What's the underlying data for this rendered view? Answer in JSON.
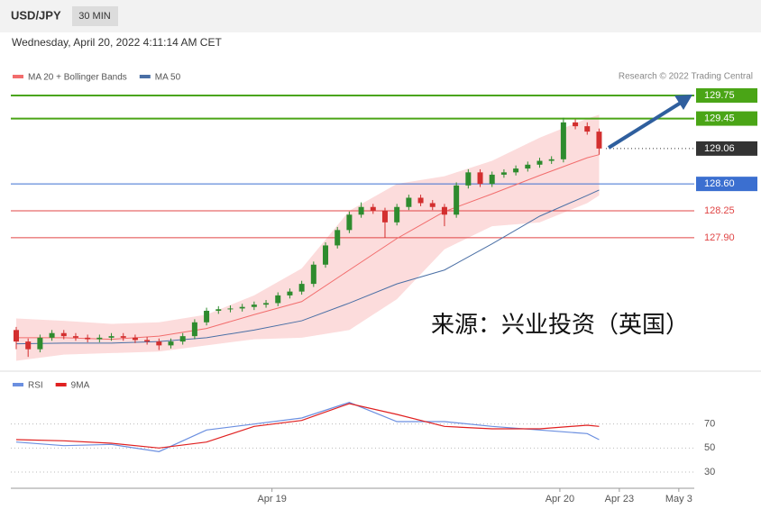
{
  "header": {
    "symbol": "USD/JPY",
    "interval": "30 MIN",
    "date": "Wednesday, April 20, 2022 4:11:14 AM CET"
  },
  "chart_data": [
    {
      "type": "candlestick",
      "credit": "Research © 2022 Trading Central",
      "annotation": "来源：兴业投资（英国）",
      "xlim": [
        0,
        114
      ],
      "ylim": [
        126.2,
        129.82
      ],
      "candles": {
        "up_color": "#2e8b2e",
        "down_color": "#d32f2f",
        "x": [
          0,
          2,
          4,
          6,
          8,
          10,
          12,
          14,
          16,
          18,
          20,
          22,
          24,
          26,
          28,
          30,
          32,
          34,
          36,
          38,
          40,
          42,
          44,
          46,
          48,
          50,
          52,
          54,
          56,
          58,
          60,
          62,
          64,
          66,
          68,
          70,
          72,
          74,
          76,
          78,
          80,
          82,
          84,
          86,
          88,
          90,
          92,
          94,
          96,
          98
        ],
        "open": [
          126.7,
          126.55,
          126.45,
          126.6,
          126.66,
          126.62,
          126.6,
          126.58,
          126.6,
          126.62,
          126.6,
          126.57,
          126.55,
          126.5,
          126.55,
          126.62,
          126.8,
          126.95,
          126.97,
          126.98,
          127.0,
          127.03,
          127.05,
          127.15,
          127.2,
          127.3,
          127.55,
          127.8,
          128.0,
          128.2,
          128.3,
          128.25,
          128.1,
          128.3,
          128.42,
          128.35,
          128.3,
          128.2,
          128.58,
          128.75,
          128.6,
          128.72,
          128.75,
          128.8,
          128.85,
          128.9,
          128.92,
          129.4,
          129.35,
          129.28
        ],
        "high": [
          126.74,
          126.59,
          126.64,
          126.7,
          126.7,
          126.66,
          126.64,
          126.64,
          126.66,
          126.66,
          126.64,
          126.61,
          126.59,
          126.59,
          126.66,
          126.84,
          126.99,
          127.01,
          127.02,
          127.04,
          127.07,
          127.09,
          127.19,
          127.24,
          127.34,
          127.59,
          127.84,
          128.04,
          128.24,
          128.36,
          128.34,
          128.29,
          128.34,
          128.46,
          128.46,
          128.39,
          128.34,
          128.62,
          128.79,
          128.79,
          128.76,
          128.79,
          128.84,
          128.89,
          128.94,
          128.96,
          129.46,
          129.44,
          129.4,
          129.32
        ],
        "low": [
          126.45,
          126.35,
          126.41,
          126.56,
          126.58,
          126.56,
          126.54,
          126.54,
          126.56,
          126.56,
          126.53,
          126.51,
          126.44,
          126.46,
          126.51,
          126.58,
          126.76,
          126.91,
          126.93,
          126.94,
          126.96,
          126.99,
          127.01,
          127.11,
          127.16,
          127.26,
          127.51,
          127.76,
          127.96,
          128.16,
          128.21,
          127.9,
          128.06,
          128.26,
          128.31,
          128.26,
          128.05,
          128.16,
          128.54,
          128.56,
          128.56,
          128.68,
          128.71,
          128.76,
          128.81,
          128.86,
          128.88,
          129.31,
          129.24,
          128.98
        ],
        "close": [
          126.55,
          126.45,
          126.6,
          126.66,
          126.62,
          126.6,
          126.58,
          126.6,
          126.62,
          126.6,
          126.57,
          126.55,
          126.5,
          126.55,
          126.62,
          126.8,
          126.95,
          126.97,
          126.98,
          127.0,
          127.03,
          127.05,
          127.15,
          127.2,
          127.3,
          127.55,
          127.8,
          128.0,
          128.2,
          128.3,
          128.25,
          128.1,
          128.3,
          128.42,
          128.35,
          128.3,
          128.2,
          128.58,
          128.75,
          128.6,
          128.72,
          128.75,
          128.8,
          128.85,
          128.9,
          128.92,
          129.4,
          129.35,
          129.28,
          129.06
        ]
      },
      "series": [
        {
          "name": "MA 20 + Bollinger Bands",
          "color": "#f26d6d",
          "band_color": "#fcdcdc",
          "x": [
            0,
            8,
            16,
            24,
            32,
            40,
            48,
            56,
            64,
            72,
            80,
            88,
            96,
            98
          ],
          "values": [
            126.6,
            126.6,
            126.58,
            126.62,
            126.72,
            126.9,
            127.07,
            127.48,
            127.89,
            128.24,
            128.47,
            128.71,
            128.94,
            128.98
          ],
          "upper": [
            126.85,
            126.82,
            126.78,
            126.8,
            126.9,
            127.15,
            127.5,
            128.25,
            128.6,
            128.7,
            128.9,
            129.2,
            129.45,
            129.5
          ],
          "lower": [
            126.3,
            126.38,
            126.4,
            126.42,
            126.5,
            126.58,
            126.6,
            126.7,
            127.1,
            127.75,
            128.05,
            128.1,
            128.35,
            128.45
          ]
        },
        {
          "name": "MA 50",
          "color": "#4a6fa5",
          "x": [
            0,
            8,
            16,
            24,
            32,
            40,
            48,
            56,
            64,
            72,
            80,
            88,
            96,
            98
          ],
          "values": [
            126.52,
            126.53,
            126.53,
            126.55,
            126.6,
            126.7,
            126.82,
            127.05,
            127.3,
            127.48,
            127.82,
            128.18,
            128.45,
            128.52
          ]
        }
      ],
      "levels": [
        {
          "value": 129.75,
          "label": "129.75",
          "color": "#4aa516",
          "line": true,
          "box": true
        },
        {
          "value": 129.45,
          "label": "129.45",
          "color": "#4aa516",
          "line": true,
          "box": true
        },
        {
          "value": 129.06,
          "label": "129.06",
          "color": "#333333",
          "line": false,
          "box": true
        },
        {
          "value": 128.6,
          "label": "128.60",
          "color": "#3b6fd0",
          "line": true,
          "box": true
        },
        {
          "value": 128.25,
          "label": "128.25",
          "color": "#e04545",
          "line": true,
          "box": false
        },
        {
          "value": 127.9,
          "label": "127.90",
          "color": "#e04545",
          "line": true,
          "box": false
        }
      ]
    },
    {
      "type": "line",
      "xlim": [
        0,
        114
      ],
      "ylim": [
        18,
        108
      ],
      "yticks": [
        30,
        50,
        70
      ],
      "xticks": [
        {
          "value": 43,
          "label": "Apr 19"
        },
        {
          "value": 91.4,
          "label": "Apr 20"
        },
        {
          "value": 101.4,
          "label": "Apr 23"
        },
        {
          "value": 111.4,
          "label": "May 3"
        }
      ],
      "series": [
        {
          "name": "RSI",
          "color": "#6b8fe0",
          "x": [
            0,
            8,
            16,
            24,
            32,
            40,
            48,
            56,
            64,
            72,
            80,
            88,
            96,
            98
          ],
          "values": [
            55,
            52,
            53,
            47,
            65,
            70,
            75,
            88,
            72,
            72,
            68,
            65,
            62,
            57
          ]
        },
        {
          "name": "9MA",
          "color": "#e02020",
          "x": [
            0,
            8,
            16,
            24,
            32,
            40,
            48,
            56,
            64,
            72,
            80,
            88,
            96,
            98
          ],
          "values": [
            57,
            56,
            54,
            50,
            55,
            68,
            73,
            87,
            78,
            68,
            66,
            66,
            69,
            68
          ]
        }
      ]
    }
  ]
}
